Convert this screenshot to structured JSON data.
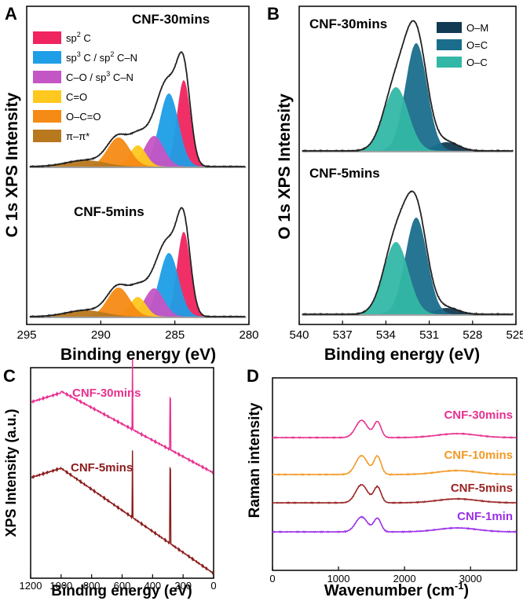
{
  "chart_data": [
    {
      "panel": "A",
      "type": "area",
      "title": "",
      "xlabel": "Binding energy (eV)",
      "ylabel": "C 1s XPS Intensity",
      "xlim": [
        295,
        280
      ],
      "xticks": [
        "295",
        "290",
        "285",
        "280"
      ],
      "spectra": [
        "CNF-30mins",
        "CNF-5mins"
      ],
      "components": [
        {
          "name": "sp2 C",
          "label_main": "sp",
          "sup": "2",
          "label_rest": " C",
          "color": "#f0245f",
          "center_eV": 284.4
        },
        {
          "name": "sp3 C / sp2 C–N",
          "label_main": "sp",
          "sup": "3",
          "label_mid": " C / sp",
          "sup2": "2",
          "label_rest": " C–N",
          "color": "#1e9ee6",
          "center_eV": 285.4
        },
        {
          "name": "C–O / sp3 C–N",
          "label_main": "C–O / sp",
          "sup": "3",
          "label_rest": " C–N",
          "color": "#c455c4",
          "center_eV": 286.4
        },
        {
          "name": "C=O",
          "label_main": "C=O",
          "color": "#ffc81e",
          "center_eV": 287.5
        },
        {
          "name": "O–C=O",
          "label_main": "O–C=O",
          "color": "#f58a14",
          "center_eV": 288.8
        },
        {
          "name": "π–π*",
          "label_main": "π–π*",
          "color": "#b8781e",
          "center_eV": 291.0
        }
      ]
    },
    {
      "panel": "B",
      "type": "area",
      "title": "",
      "xlabel": "Binding energy (eV)",
      "ylabel": "O 1s XPS Intensity",
      "xlim": [
        540,
        525
      ],
      "xticks": [
        "540",
        "537",
        "534",
        "531",
        "528",
        "525"
      ],
      "spectra": [
        "CNF-30mins",
        "CNF-5mins"
      ],
      "components": [
        {
          "name": "O–M",
          "color": "#123a52",
          "center_eV": 529.8
        },
        {
          "name": "O=C",
          "color": "#1a6e8c",
          "center_eV": 531.9
        },
        {
          "name": "O–C",
          "color": "#33b7a6",
          "center_eV": 533.3
        }
      ]
    },
    {
      "panel": "C",
      "type": "line",
      "title": "",
      "xlabel": "Binding energy (eV)",
      "ylabel": "XPS Intensity (a.u.)",
      "xlim": [
        1200,
        0
      ],
      "xticks": [
        "1200",
        "1000",
        "800",
        "600",
        "400",
        "200",
        "0"
      ],
      "series": [
        {
          "name": "CNF-30mins",
          "color": "#e8318f"
        },
        {
          "name": "CNF-5mins",
          "color": "#8b1a1a"
        }
      ]
    },
    {
      "panel": "D",
      "type": "line",
      "title": "",
      "xlabel": "Wavenumber (cm",
      "xlabel_sup": "-1",
      "xlabel_end": ")",
      "ylabel": "Raman intensity",
      "xlim": [
        0,
        3700
      ],
      "xticks": [
        "0",
        "1000",
        "2000",
        "3000"
      ],
      "series": [
        {
          "name": "CNF-30mins",
          "color": "#e8318f"
        },
        {
          "name": "CNF-10mins",
          "color": "#f39a26"
        },
        {
          "name": "CNF-5mins",
          "color": "#9b2424"
        },
        {
          "name": "CNF-1min",
          "color": "#9b30e8"
        }
      ]
    }
  ],
  "panel_letters": [
    "A",
    "B",
    "C",
    "D"
  ]
}
